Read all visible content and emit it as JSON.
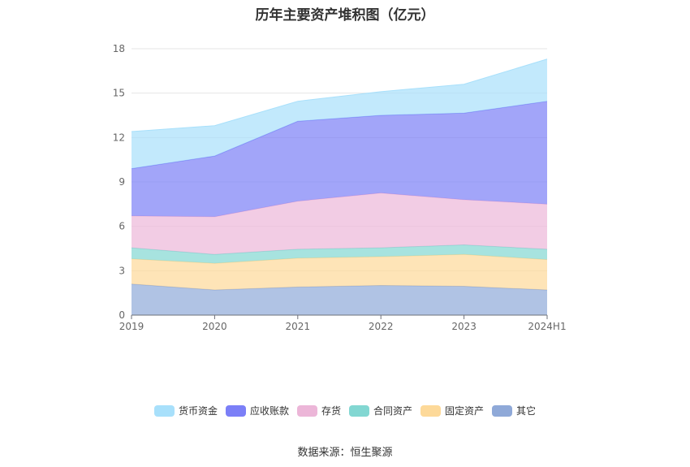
{
  "chart_data": {
    "type": "area",
    "title": "历年主要资产堆积图（亿元）",
    "categories": [
      "2019",
      "2020",
      "2021",
      "2022",
      "2023",
      "2024H1"
    ],
    "ylim": [
      0,
      18
    ],
    "yticks": [
      "0",
      "3",
      "6",
      "9",
      "12",
      "15",
      "18"
    ],
    "stacked": true,
    "grid": true,
    "legend_position": "bottom",
    "series": [
      {
        "name": "其它",
        "color": "#8fa9d8",
        "values": [
          2.1,
          1.7,
          1.9,
          2.0,
          1.95,
          1.7
        ]
      },
      {
        "name": "固定资产",
        "color": "#fdd999",
        "values": [
          1.7,
          1.8,
          1.95,
          1.95,
          2.15,
          2.05
        ]
      },
      {
        "name": "合同资产",
        "color": "#82d7d2",
        "values": [
          0.75,
          0.6,
          0.6,
          0.6,
          0.65,
          0.7
        ]
      },
      {
        "name": "存货",
        "color": "#ecb6d8",
        "values": [
          2.15,
          2.55,
          3.25,
          3.7,
          3.05,
          3.05
        ]
      },
      {
        "name": "应收账款",
        "color": "#7b7ff7",
        "values": [
          3.2,
          4.1,
          5.4,
          5.25,
          5.85,
          6.95
        ]
      },
      {
        "name": "货币资金",
        "color": "#a8e0fb",
        "values": [
          2.5,
          2.05,
          1.35,
          1.6,
          1.95,
          2.85
        ]
      }
    ],
    "source": "数据来源：恒生聚源"
  },
  "legend_order": [
    "货币资金",
    "应收账款",
    "存货",
    "合同资产",
    "固定资产",
    "其它"
  ]
}
